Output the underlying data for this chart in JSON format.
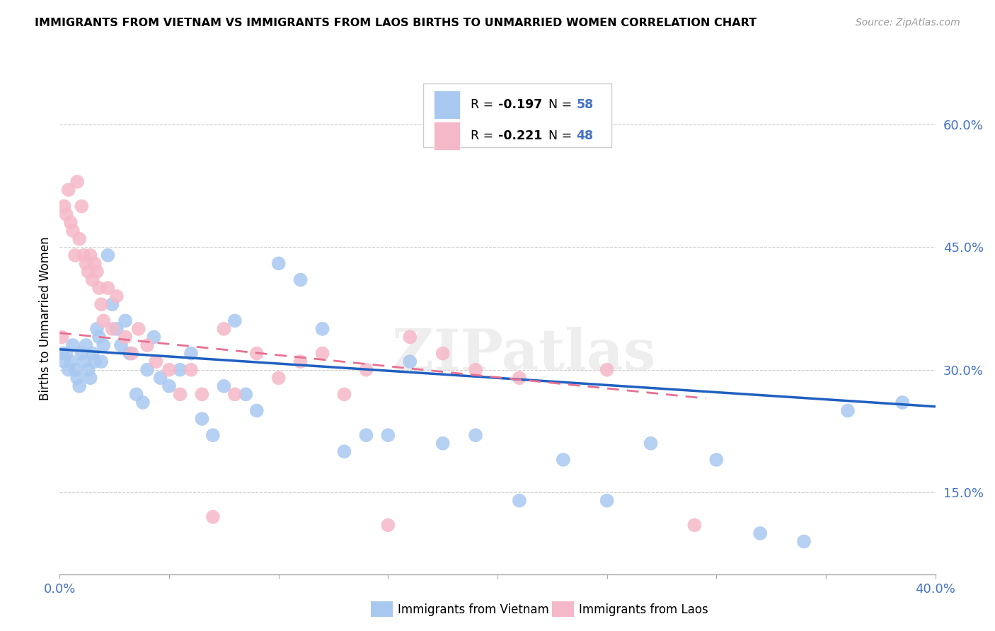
{
  "title": "IMMIGRANTS FROM VIETNAM VS IMMIGRANTS FROM LAOS BIRTHS TO UNMARRIED WOMEN CORRELATION CHART",
  "source": "Source: ZipAtlas.com",
  "ylabel": "Births to Unmarried Women",
  "ylabel_right_ticks": [
    "60.0%",
    "45.0%",
    "30.0%",
    "15.0%"
  ],
  "ylabel_right_vals": [
    0.6,
    0.45,
    0.3,
    0.15
  ],
  "xlim": [
    0.0,
    0.4
  ],
  "ylim": [
    0.05,
    0.675
  ],
  "vietnam_R": -0.197,
  "vietnam_N": 58,
  "laos_R": -0.221,
  "laos_N": 48,
  "vietnam_color": "#A8C8F0",
  "laos_color": "#F5B8C8",
  "vietnam_line_color": "#2060C0",
  "laos_line_color": "#E87090",
  "watermark": "ZIPatlas",
  "vietnam_x": [
    0.001,
    0.002,
    0.003,
    0.004,
    0.005,
    0.006,
    0.007,
    0.008,
    0.009,
    0.01,
    0.011,
    0.012,
    0.013,
    0.014,
    0.015,
    0.016,
    0.017,
    0.018,
    0.019,
    0.02,
    0.022,
    0.024,
    0.026,
    0.028,
    0.03,
    0.032,
    0.035,
    0.038,
    0.04,
    0.043,
    0.046,
    0.05,
    0.055,
    0.06,
    0.065,
    0.07,
    0.075,
    0.08,
    0.085,
    0.09,
    0.1,
    0.11,
    0.12,
    0.13,
    0.14,
    0.15,
    0.16,
    0.175,
    0.19,
    0.21,
    0.23,
    0.25,
    0.27,
    0.3,
    0.32,
    0.34,
    0.36,
    0.385
  ],
  "vietnam_y": [
    0.32,
    0.31,
    0.32,
    0.3,
    0.31,
    0.33,
    0.3,
    0.29,
    0.28,
    0.32,
    0.31,
    0.33,
    0.3,
    0.29,
    0.32,
    0.31,
    0.35,
    0.34,
    0.31,
    0.33,
    0.44,
    0.38,
    0.35,
    0.33,
    0.36,
    0.32,
    0.27,
    0.26,
    0.3,
    0.34,
    0.29,
    0.28,
    0.3,
    0.32,
    0.24,
    0.22,
    0.28,
    0.36,
    0.27,
    0.25,
    0.43,
    0.41,
    0.35,
    0.2,
    0.22,
    0.22,
    0.31,
    0.21,
    0.22,
    0.14,
    0.19,
    0.14,
    0.21,
    0.19,
    0.1,
    0.09,
    0.25,
    0.26
  ],
  "laos_x": [
    0.001,
    0.002,
    0.003,
    0.004,
    0.005,
    0.006,
    0.007,
    0.008,
    0.009,
    0.01,
    0.011,
    0.012,
    0.013,
    0.014,
    0.015,
    0.016,
    0.017,
    0.018,
    0.019,
    0.02,
    0.022,
    0.024,
    0.026,
    0.03,
    0.033,
    0.036,
    0.04,
    0.044,
    0.05,
    0.055,
    0.06,
    0.065,
    0.07,
    0.075,
    0.08,
    0.09,
    0.1,
    0.11,
    0.12,
    0.13,
    0.14,
    0.15,
    0.16,
    0.175,
    0.19,
    0.21,
    0.25,
    0.29
  ],
  "laos_y": [
    0.34,
    0.5,
    0.49,
    0.52,
    0.48,
    0.47,
    0.44,
    0.53,
    0.46,
    0.5,
    0.44,
    0.43,
    0.42,
    0.44,
    0.41,
    0.43,
    0.42,
    0.4,
    0.38,
    0.36,
    0.4,
    0.35,
    0.39,
    0.34,
    0.32,
    0.35,
    0.33,
    0.31,
    0.3,
    0.27,
    0.3,
    0.27,
    0.12,
    0.35,
    0.27,
    0.32,
    0.29,
    0.31,
    0.32,
    0.27,
    0.3,
    0.11,
    0.34,
    0.32,
    0.3,
    0.29,
    0.3,
    0.11
  ],
  "viet_line_x0": 0.0,
  "viet_line_x1": 0.4,
  "viet_line_y0": 0.325,
  "viet_line_y1": 0.255,
  "laos_line_x0": 0.0,
  "laos_line_x1": 0.295,
  "laos_line_y0": 0.345,
  "laos_line_y1": 0.265
}
